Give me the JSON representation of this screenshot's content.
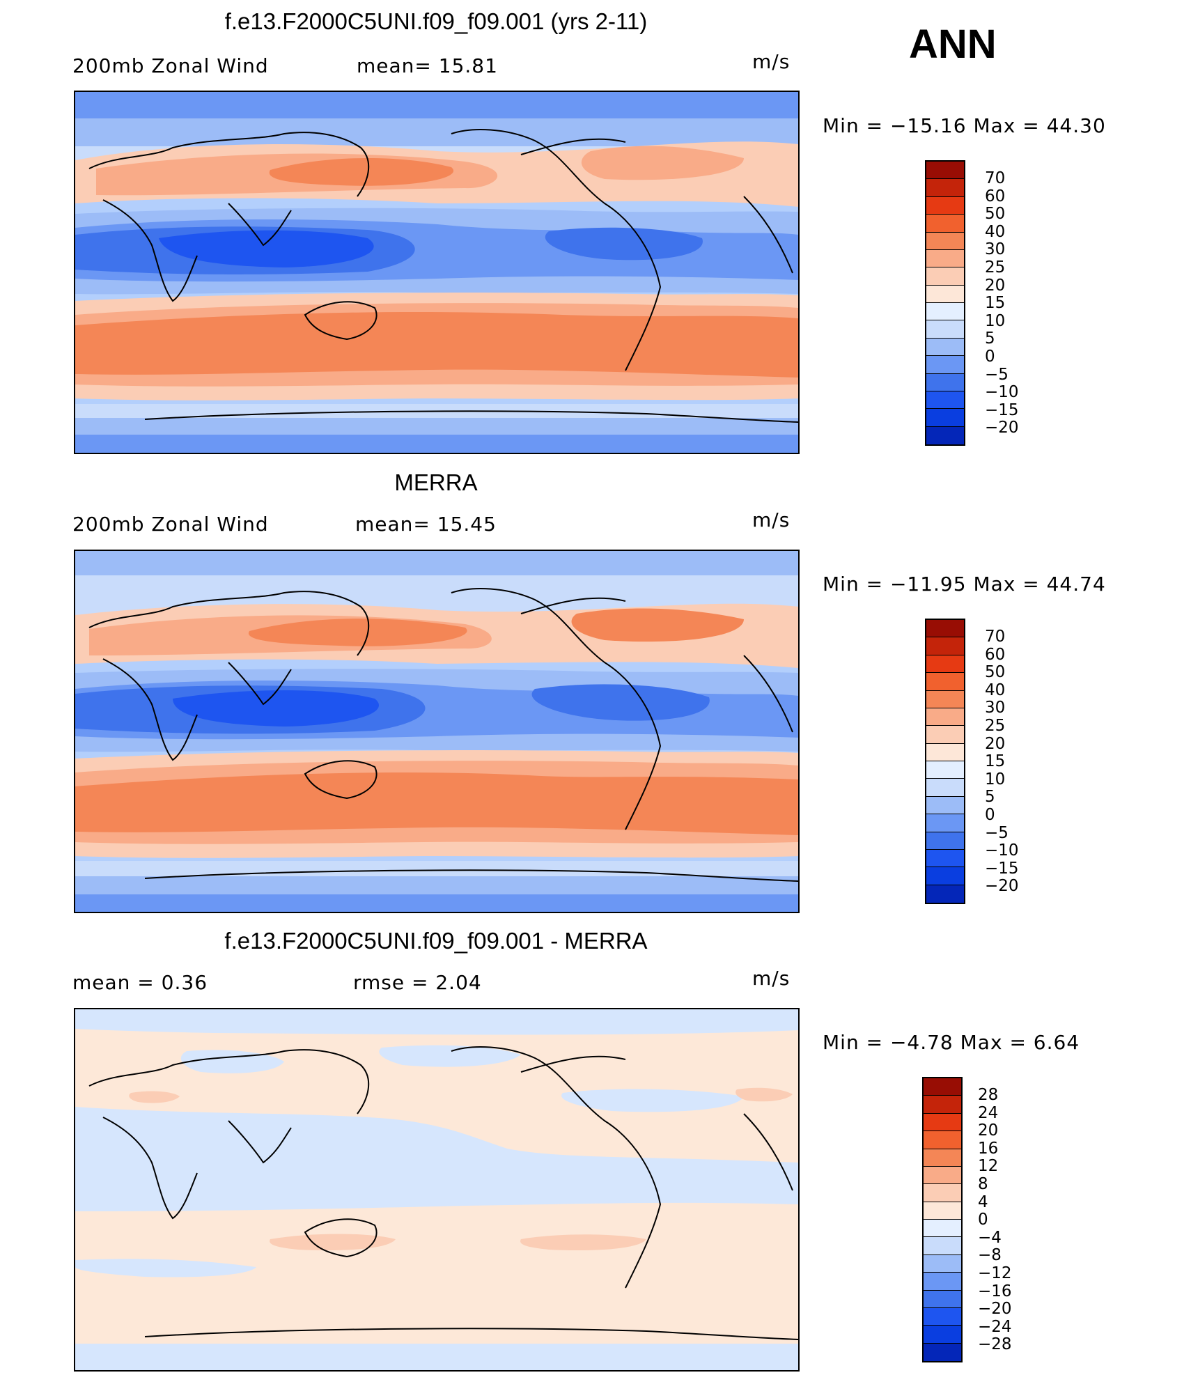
{
  "season": "ANN",
  "colors": {
    "rdbu": [
      "#000a8a",
      "#0426b8",
      "#0a3ee0",
      "#1e55f0",
      "#3f73ec",
      "#6b97f4",
      "#9cbcf7",
      "#c9dcfb",
      "#e4efff",
      "#fde7d8",
      "#fbcdb5",
      "#f9ab88",
      "#f48656",
      "#f1612e",
      "#e63a13",
      "#c4240a",
      "#980d04"
    ],
    "ocean_model": "#b3cffc",
    "ocean_diff": "#fde8d8"
  },
  "panels": [
    {
      "title": "f.e13.F2000C5UNI.f09_f09.001 (yrs 2-11)",
      "left": "200mb  Zonal  Wind",
      "center": "mean=   15.81",
      "units": "m/s",
      "minmax": "Min  =  −15.16  Max  =    44.30",
      "colorbar_labels": [
        "70",
        "60",
        "50",
        "40",
        "30",
        "25",
        "20",
        "15",
        "10",
        "5",
        "0",
        "−5",
        "−10",
        "−15",
        "−20"
      ]
    },
    {
      "title": "MERRA",
      "left": "200mb  Zonal  Wind",
      "center": "mean=   15.45",
      "units": "m/s",
      "minmax": "Min  =  −11.95  Max  =    44.74",
      "colorbar_labels": [
        "70",
        "60",
        "50",
        "40",
        "30",
        "25",
        "20",
        "15",
        "10",
        "5",
        "0",
        "−5",
        "−10",
        "−15",
        "−20"
      ]
    },
    {
      "title": "f.e13.F2000C5UNI.f09_f09.001 - MERRA",
      "left": "mean  =      0.36",
      "center": "rmse  =      2.04",
      "units": "m/s",
      "minmax": "Min  =     −4.78  Max  =      6.64",
      "colorbar_labels": [
        "28",
        "24",
        "20",
        "16",
        "12",
        "8",
        "4",
        "0",
        "−4",
        "−8",
        "−12",
        "−16",
        "−20",
        "−24",
        "−28"
      ]
    }
  ]
}
